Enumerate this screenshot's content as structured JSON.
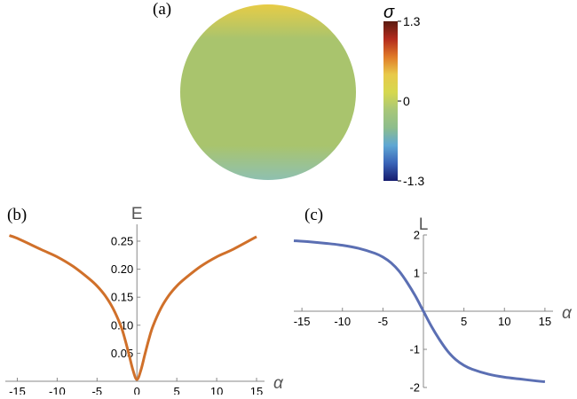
{
  "panels": {
    "a": "(a)",
    "b": "(b)",
    "c": "(c)"
  },
  "colorbar": {
    "symbol": "σ",
    "ticks": [
      "1.3",
      "0",
      "-1.3"
    ],
    "tick_values": [
      1.3,
      0,
      -1.3
    ],
    "colors": [
      "#5a1a10",
      "#b32b1e",
      "#e07a28",
      "#e8c94a",
      "#d6d84f",
      "#a8c778",
      "#8dbd8c",
      "#5fa7d4",
      "#3a64b8",
      "#151b6e"
    ]
  },
  "sphere": {
    "equator_color": "#a9c46d",
    "north_pole_color": "#b3361b",
    "north_ring_color": "#e8cc45",
    "south_pole_color": "#4a87cf",
    "south_ring_color": "#8ec0b2"
  },
  "chart_data": [
    {
      "type": "line",
      "panel": "b",
      "ylabel": "E",
      "xlabel": "α",
      "xlim": [
        -16.5,
        16
      ],
      "ylim": [
        0,
        0.28
      ],
      "x_ticks": [
        -15,
        -10,
        -5,
        0,
        5,
        10,
        15
      ],
      "x_tick_labels": [
        "-15",
        "-10",
        "-5",
        "0",
        "5",
        "10",
        "15"
      ],
      "y_ticks": [
        0.05,
        0.1,
        0.15,
        0.2,
        0.25
      ],
      "y_tick_labels": [
        "0.05",
        "0.10",
        "0.15",
        "0.20",
        "0.25"
      ],
      "color": "#d0702a",
      "x": [
        -16,
        -15,
        -12,
        -10,
        -8,
        -6,
        -5,
        -4,
        -3,
        -2,
        -1.5,
        -1,
        -0.5,
        0,
        0.5,
        1,
        1.5,
        2,
        3,
        4,
        5,
        6,
        8,
        10,
        12,
        15
      ],
      "y": [
        0.26,
        0.255,
        0.235,
        0.222,
        0.205,
        0.183,
        0.17,
        0.153,
        0.13,
        0.098,
        0.075,
        0.048,
        0.02,
        0.003,
        0.02,
        0.048,
        0.075,
        0.098,
        0.13,
        0.153,
        0.17,
        0.183,
        0.205,
        0.222,
        0.235,
        0.258
      ]
    },
    {
      "type": "line",
      "panel": "c",
      "ylabel": "L",
      "xlabel": "α",
      "xlim": [
        -16,
        16
      ],
      "ylim": [
        -2,
        2
      ],
      "x_ticks": [
        -15,
        -10,
        -5,
        5,
        10,
        15
      ],
      "x_tick_labels": [
        "-15",
        "-10",
        "-5",
        "5",
        "10",
        "15"
      ],
      "y_ticks": [
        -2,
        -1,
        1,
        2
      ],
      "y_tick_labels": [
        "-2",
        "-1",
        "1",
        "2"
      ],
      "color": "#5b6fb3",
      "x": [
        -16,
        -14,
        -12,
        -10,
        -8,
        -6,
        -5,
        -4,
        -3,
        -2,
        -1,
        0,
        1,
        2,
        3,
        4,
        5,
        6,
        8,
        10,
        12,
        14,
        15
      ],
      "y": [
        1.85,
        1.82,
        1.78,
        1.73,
        1.65,
        1.52,
        1.42,
        1.27,
        1.05,
        0.75,
        0.4,
        0.0,
        -0.4,
        -0.75,
        -1.05,
        -1.27,
        -1.42,
        -1.52,
        -1.65,
        -1.73,
        -1.78,
        -1.83,
        -1.85
      ]
    }
  ]
}
